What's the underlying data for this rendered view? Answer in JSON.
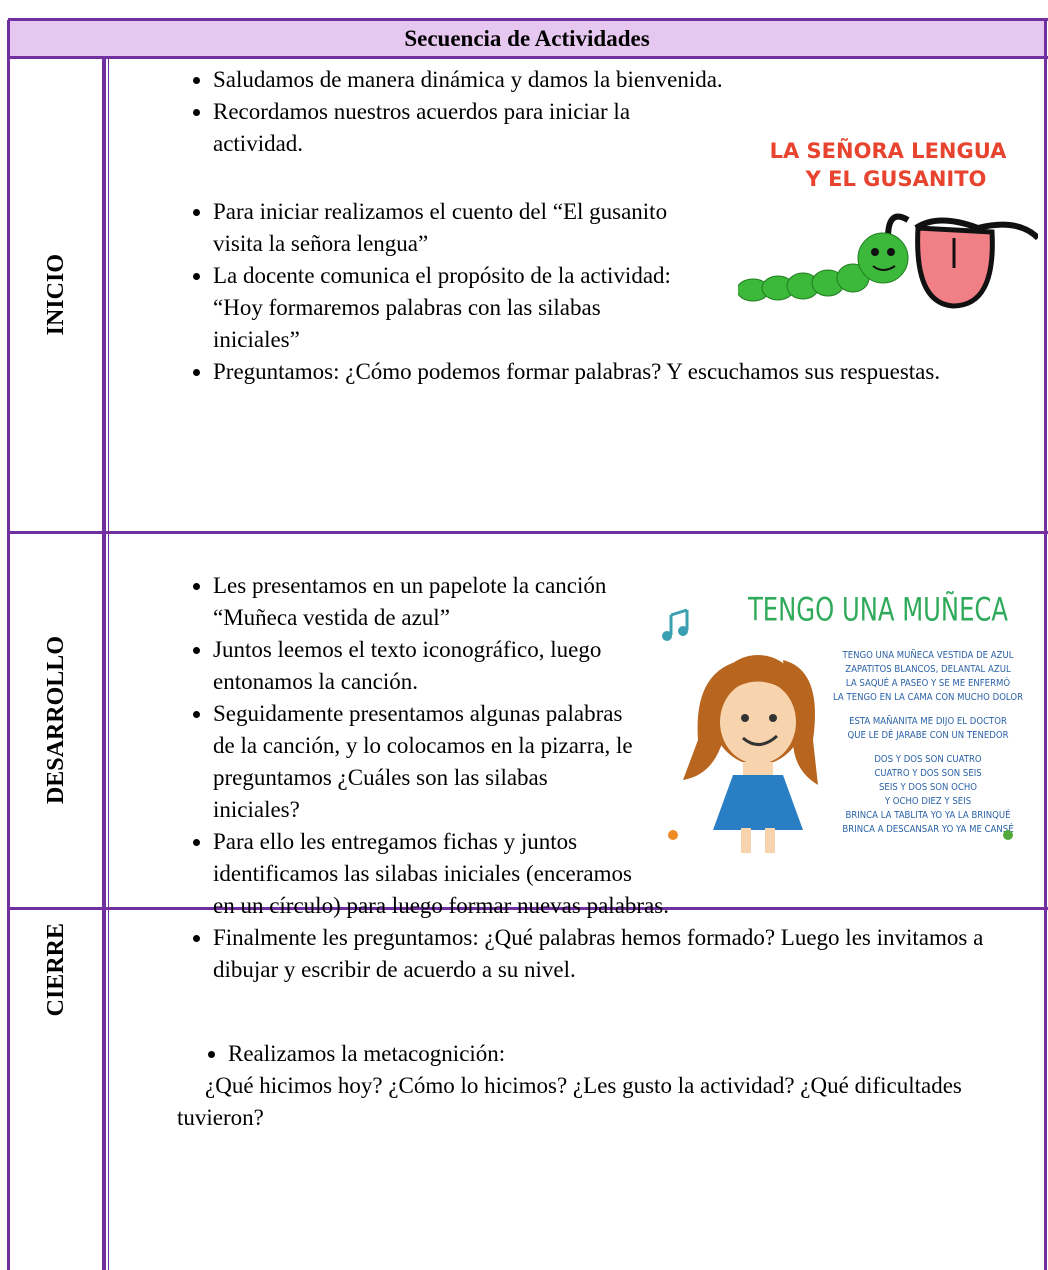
{
  "title": "Secuencia de Actividades",
  "sections": [
    {
      "label": "INICIO",
      "items": [
        "Saludamos de manera dinámica y damos la bienvenida.",
        "Recordamos nuestros acuerdos para iniciar la actividad.",
        "Para iniciar realizamos el cuento del “El gusanito visita la señora lengua”",
        "La docente comunica el propósito de la actividad: “Hoy formaremos palabras con las silabas iniciales”",
        "Preguntamos: ¿Cómo podemos formar palabras? Y escuchamos sus respuestas."
      ],
      "image": {
        "lines": [
          "LA SEÑORA LENGUA",
          "Y EL GUSANITO"
        ]
      }
    },
    {
      "label": "DESARROLLO",
      "items": [
        "Les presentamos en un papelote la canción “Muñeca vestida de azul”",
        "Juntos leemos el texto iconográfico, luego entonamos la canción.",
        "Seguidamente presentamos algunas palabras de la canción, y lo colocamos en la pizarra, le preguntamos ¿Cuáles son las silabas iniciales?",
        "Para ello les entregamos fichas y juntos identificamos las silabas iniciales (enceramos en un círculo) para luego formar nuevas palabras.",
        "Finalmente les preguntamos: ¿Qué palabras hemos formado? Luego les invitamos a dibujar y escribir de acuerdo a su nivel."
      ],
      "image": {
        "title": "TENGO UNA MUÑECA",
        "lines": [
          "TENGO UNA MUÑECA VESTIDA DE AZUL",
          "ZAPATITOS BLANCOS, DELANTAL AZUL",
          "LA SAQUÉ A PASEO Y SE ME ENFERMÓ",
          "LA TENGO EN LA CAMA CON MUCHO DOLOR",
          "ESTA MAÑANITA ME DIJO EL DOCTOR",
          "QUE LE DÉ JARABE CON UN TENEDOR",
          "DOS Y DOS SON CUATRO",
          "CUATRO Y DOS SON SEIS",
          "SEIS Y DOS SON OCHO",
          "Y OCHO DIEZ Y SEIS",
          "BRINCA LA TABLITA YO YA LA BRINQUÉ",
          "BRINCA A DESCANSAR YO YA ME CANSÉ"
        ]
      }
    },
    {
      "label": "CIERRE",
      "items": [
        "Realizamos la metacognición:"
      ],
      "text": "¿Qué hicimos hoy? ¿Cómo lo hicimos? ¿Les gusto la actividad? ¿Qué dificultades tuvieron?"
    }
  ]
}
